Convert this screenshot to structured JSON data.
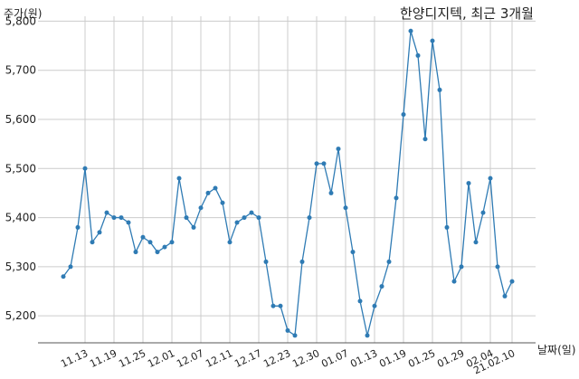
{
  "chart_data": {
    "type": "line",
    "title": "한양디지텍, 최근 3개월",
    "ylabel": "주가(원)",
    "xlabel": "날짜(일)",
    "ylim": [
      5145,
      5810
    ],
    "yticks": [
      5200,
      5300,
      5400,
      5500,
      5600,
      5700,
      5800
    ],
    "ytick_labels": [
      "5,200",
      "5,300",
      "5,400",
      "5,500",
      "5,600",
      "5,700",
      "5,800"
    ],
    "xtick_labels": [
      "11.13",
      "11.19",
      "11.25",
      "12.01",
      "12.07",
      "12.11",
      "12.17",
      "12.23",
      "12.30",
      "01.07",
      "01.13",
      "01.19",
      "01.25",
      "01.29",
      "02.04",
      "21.02.10"
    ],
    "xtick_index": [
      3,
      7,
      11,
      15,
      19,
      23,
      27,
      31,
      35,
      39,
      43,
      47,
      51,
      55,
      59,
      62
    ],
    "grid": true,
    "series": [
      {
        "color": "#2f7bb4",
        "values": [
          5280,
          5300,
          5380,
          5500,
          5350,
          5370,
          5410,
          5400,
          5400,
          5390,
          5330,
          5360,
          5350,
          5330,
          5340,
          5350,
          5480,
          5400,
          5380,
          5420,
          5450,
          5460,
          5430,
          5350,
          5390,
          5400,
          5410,
          5400,
          5310,
          5220,
          5220,
          5170,
          5160,
          5310,
          5400,
          5510,
          5510,
          5450,
          5540,
          5420,
          5330,
          5230,
          5160,
          5220,
          5260,
          5310,
          5440,
          5610,
          5780,
          5730,
          5560,
          5760,
          5660,
          5380,
          5270,
          5300,
          5470,
          5350,
          5410,
          5480,
          5300,
          5240,
          5270
        ]
      }
    ]
  }
}
